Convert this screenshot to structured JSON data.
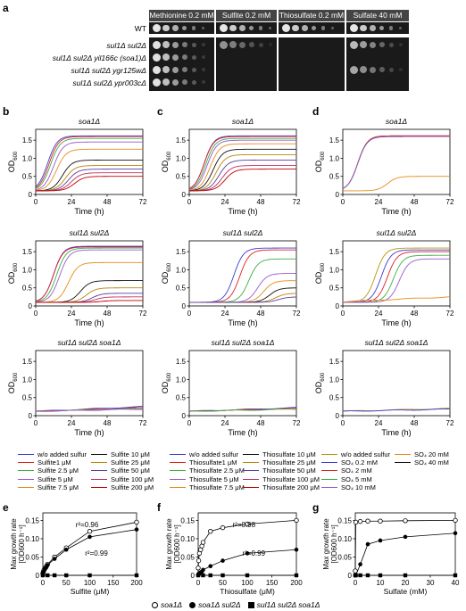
{
  "panel_labels": {
    "a": "a",
    "b": "b",
    "c": "c",
    "d": "d",
    "e": "e",
    "f": "f",
    "g": "g"
  },
  "panel_a": {
    "conditions": [
      "Methionine 0.2 mM",
      "Sulfite 0.2 mM",
      "Thiosulfate 0.2 mM",
      "Sulfate 40 mM"
    ],
    "strains_top": [
      "WT"
    ],
    "strains": [
      "sul1Δ sul2Δ",
      "sul1Δ sul2Δ yil166c (soa1)Δ",
      "sul1Δ sul2Δ ygr125wΔ",
      "sul1Δ sul2Δ ypr003cΔ"
    ]
  },
  "growth_axes": {
    "ylabel": "OD",
    "ysub": "600",
    "xlabel": "Time (h)",
    "xticks": [
      "0",
      "24",
      "48",
      "72"
    ],
    "yticks": [
      "0",
      "0.5",
      "1.0",
      "1.5"
    ]
  },
  "panel_b": {
    "titles": [
      "soa1Δ",
      "sul1Δ  sul2Δ",
      "sul1Δ  sul2Δ  soa1Δ"
    ],
    "legend": [
      {
        "label": "w/o added sulfur",
        "color": "#3b3bd6"
      },
      {
        "label": "Sulfite1 μM",
        "color": "#e02020"
      },
      {
        "label": "Sulfite 2.5 μM",
        "color": "#3cb043"
      },
      {
        "label": "Sulfite 5 μM",
        "color": "#9b59d0"
      },
      {
        "label": "Sulfite 7.5 μM",
        "color": "#e88a1a"
      },
      {
        "label": "Sulfite 10 μM",
        "color": "#111111"
      },
      {
        "label": "Sulfite 25 μM",
        "color": "#b8860b"
      },
      {
        "label": "Sulfite 50 μM",
        "color": "#5a3fa0"
      },
      {
        "label": "Sulfite 100 μM",
        "color": "#c03060"
      },
      {
        "label": "Sulfite 200 μM",
        "color": "#c00000"
      }
    ]
  },
  "panel_c": {
    "titles": [
      "soa1Δ",
      "sul1Δ  sul2Δ",
      "sul1Δ  sul2Δ  soa1Δ"
    ],
    "legend": [
      {
        "label": "w/o added sulfur",
        "color": "#3b3bd6"
      },
      {
        "label": "Thiosulfate1 μM",
        "color": "#e02020"
      },
      {
        "label": "Thiosulfate 2.5 μM",
        "color": "#3cb043"
      },
      {
        "label": "Thiosulfate 5 μM",
        "color": "#9b59d0"
      },
      {
        "label": "Thiosulfate 7.5 μM",
        "color": "#e88a1a"
      },
      {
        "label": "Thiosulfate 10 μM",
        "color": "#111111"
      },
      {
        "label": "Thiosulfate 25 μM",
        "color": "#b8860b"
      },
      {
        "label": "Thiosulfate 50 μM",
        "color": "#5a3fa0"
      },
      {
        "label": "Thiosulfate 100 μM",
        "color": "#c03060"
      },
      {
        "label": "Thiosulfate 200 μM",
        "color": "#c00000"
      }
    ]
  },
  "panel_d": {
    "titles": [
      "soa1Δ",
      "sul1Δ  sul2Δ",
      "sul1Δ  sul2Δ  soa1Δ"
    ],
    "legend": [
      {
        "label": "w/o added sulfur",
        "color": "#b8960b"
      },
      {
        "label": "SO₄ 0.2 mM",
        "color": "#3b3bd6"
      },
      {
        "label": "SO₄ 2 mM",
        "color": "#e02020"
      },
      {
        "label": "SO₄ 5 mM",
        "color": "#3cb043"
      },
      {
        "label": "SO₄ 10 mM",
        "color": "#9b59d0"
      },
      {
        "label": "SO₄ 20 mM",
        "color": "#e88a1a"
      },
      {
        "label": "SO₄ 40 mM",
        "color": "#111111"
      }
    ]
  },
  "rate_axes": {
    "ylabel": "Max growth rate",
    "yunit": "[OD600 h⁻¹]",
    "yticks": [
      "0",
      "0.05",
      "0.10",
      "0.15"
    ]
  },
  "bottom_legend": [
    "soa1Δ",
    "soa1Δ sul2Δ",
    "sul1Δ sul2Δ soa1Δ"
  ],
  "chart_data": [
    {
      "type": "line",
      "panel": "b-top",
      "title": "soa1Δ",
      "xlabel": "Time (h)",
      "ylabel": "OD600",
      "xlim": [
        0,
        72
      ],
      "ylim": [
        0,
        1.8
      ],
      "series": [
        {
          "plateau": 1.62,
          "rise": 8
        },
        {
          "plateau": 1.6,
          "rise": 9
        },
        {
          "plateau": 1.55,
          "rise": 10
        },
        {
          "plateau": 1.45,
          "rise": 12
        },
        {
          "plateau": 1.25,
          "rise": 14
        },
        {
          "plateau": 0.95,
          "rise": 18
        },
        {
          "plateau": 0.8,
          "rise": 20
        },
        {
          "plateau": 0.7,
          "rise": 22
        },
        {
          "plateau": 0.6,
          "rise": 24
        },
        {
          "plateau": 0.5,
          "rise": 26
        }
      ]
    },
    {
      "type": "line",
      "panel": "b-mid",
      "title": "sul1Δ  sul2Δ",
      "xlabel": "Time (h)",
      "ylabel": "OD600",
      "xlim": [
        0,
        72
      ],
      "ylim": [
        0,
        1.8
      ],
      "series": [
        {
          "plateau": 1.65,
          "rise": 12
        },
        {
          "plateau": 1.63,
          "rise": 12
        },
        {
          "plateau": 1.6,
          "rise": 14
        },
        {
          "plateau": 1.55,
          "rise": 16
        },
        {
          "plateau": 1.2,
          "rise": 22
        },
        {
          "plateau": 0.7,
          "rise": 30
        },
        {
          "plateau": 0.5,
          "rise": 34
        },
        {
          "plateau": 0.35,
          "rise": 38
        },
        {
          "plateau": 0.25,
          "rise": 40
        },
        {
          "plateau": 0.15,
          "rise": 44
        }
      ]
    },
    {
      "type": "line",
      "panel": "b-bot",
      "title": "sul1Δ  sul2Δ  soa1Δ",
      "xlabel": "Time (h)",
      "ylabel": "OD600",
      "xlim": [
        0,
        72
      ],
      "ylim": [
        0,
        1.8
      ],
      "series": [
        {
          "plateau": 0.25
        },
        {
          "plateau": 0.22
        },
        {
          "plateau": 0.2
        },
        {
          "plateau": 0.18
        }
      ]
    },
    {
      "type": "line",
      "panel": "c-top",
      "title": "soa1Δ",
      "xlabel": "Time (h)",
      "ylabel": "OD600",
      "xlim": [
        0,
        72
      ],
      "ylim": [
        0,
        1.8
      ],
      "series": [
        {
          "plateau": 1.62,
          "rise": 10
        },
        {
          "plateau": 1.6,
          "rise": 10
        },
        {
          "plateau": 1.55,
          "rise": 11
        },
        {
          "plateau": 1.5,
          "rise": 12
        },
        {
          "plateau": 1.4,
          "rise": 14
        },
        {
          "plateau": 1.25,
          "rise": 16
        },
        {
          "plateau": 1.1,
          "rise": 18
        },
        {
          "plateau": 0.95,
          "rise": 20
        },
        {
          "plateau": 0.8,
          "rise": 22
        },
        {
          "plateau": 0.7,
          "rise": 24
        }
      ]
    },
    {
      "type": "line",
      "panel": "c-mid",
      "title": "sul1Δ  sul2Δ",
      "xlabel": "Time (h)",
      "ylabel": "OD600",
      "xlim": [
        0,
        72
      ],
      "ylim": [
        0,
        1.8
      ],
      "series": [
        {
          "plateau": 1.6,
          "rise": 30
        },
        {
          "plateau": 1.55,
          "rise": 34
        },
        {
          "plateau": 1.3,
          "rise": 40
        },
        {
          "plateau": 0.9,
          "rise": 46
        },
        {
          "plateau": 0.7,
          "rise": 50
        },
        {
          "plateau": 0.5,
          "rise": 54
        },
        {
          "plateau": 0.35,
          "rise": 58
        },
        {
          "plateau": 0.25,
          "rise": 60
        }
      ]
    },
    {
      "type": "line",
      "panel": "c-bot",
      "title": "sul1Δ  sul2Δ  soa1Δ",
      "xlabel": "Time (h)",
      "ylabel": "OD600",
      "xlim": [
        0,
        72
      ],
      "ylim": [
        0,
        1.8
      ],
      "series": [
        {
          "plateau": 0.22
        },
        {
          "plateau": 0.2
        },
        {
          "plateau": 0.18
        }
      ]
    },
    {
      "type": "line",
      "panel": "d-top",
      "title": "soa1Δ",
      "xlabel": "Time (h)",
      "ylabel": "OD600",
      "xlim": [
        0,
        72
      ],
      "ylim": [
        0,
        1.8
      ],
      "series": [
        {
          "plateau": 1.62,
          "rise": 10
        },
        {
          "plateau": 1.62,
          "rise": 10
        },
        {
          "plateau": 1.62,
          "rise": 10
        },
        {
          "plateau": 1.6,
          "rise": 10
        },
        {
          "plateau": 1.6,
          "rise": 10
        },
        {
          "plateau": 0.5,
          "rise": 30
        }
      ]
    },
    {
      "type": "line",
      "panel": "d-mid",
      "title": "sul1Δ  sul2Δ",
      "xlabel": "Time (h)",
      "ylabel": "OD600",
      "xlim": [
        0,
        72
      ],
      "ylim": [
        0,
        1.8
      ],
      "series": [
        {
          "plateau": 1.6,
          "rise": 22
        },
        {
          "plateau": 1.55,
          "rise": 26
        },
        {
          "plateau": 1.5,
          "rise": 30
        },
        {
          "plateau": 1.4,
          "rise": 34
        },
        {
          "plateau": 1.3,
          "rise": 38
        },
        {
          "plateau": 0.25
        }
      ]
    },
    {
      "type": "line",
      "panel": "d-bot",
      "title": "sul1Δ  sul2Δ  soa1Δ",
      "xlabel": "Time (h)",
      "ylabel": "OD600",
      "xlim": [
        0,
        72
      ],
      "ylim": [
        0,
        1.8
      ],
      "series": [
        {
          "plateau": 0.2
        },
        {
          "plateau": 0.18
        }
      ]
    },
    {
      "type": "scatter",
      "panel": "e",
      "xlabel": "Sulfite (μM)",
      "ylabel": "Max growth rate [OD600 h⁻¹]",
      "xlim": [
        0,
        200
      ],
      "ylim": [
        0,
        0.15
      ],
      "annotations": [
        "r²=0.96",
        "r²=0.99"
      ],
      "series": [
        {
          "name": "soa1Δ",
          "x": [
            0,
            1,
            2.5,
            5,
            7.5,
            10,
            25,
            50,
            100,
            200
          ],
          "y": [
            0.005,
            0.01,
            0.015,
            0.02,
            0.025,
            0.03,
            0.05,
            0.075,
            0.12,
            0.145
          ]
        },
        {
          "name": "soa1Δ sul2Δ",
          "x": [
            0,
            1,
            2.5,
            5,
            7.5,
            10,
            25,
            50,
            100,
            200
          ],
          "y": [
            0.003,
            0.008,
            0.012,
            0.018,
            0.022,
            0.028,
            0.045,
            0.07,
            0.105,
            0.125
          ]
        },
        {
          "name": "sul1Δ sul2Δ soa1Δ",
          "x": [
            0,
            10,
            25,
            50,
            100,
            200
          ],
          "y": [
            0,
            0,
            0,
            0,
            0,
            0
          ]
        }
      ]
    },
    {
      "type": "scatter",
      "panel": "f",
      "xlabel": "Thiosulfate (μM)",
      "ylabel": "Max growth rate [OD600 h⁻¹]",
      "xlim": [
        0,
        200
      ],
      "ylim": [
        0,
        0.15
      ],
      "annotations": [
        "r²=0.98",
        "r²=0.99"
      ],
      "series": [
        {
          "name": "soa1Δ",
          "x": [
            0,
            1,
            2.5,
            5,
            7.5,
            10,
            25,
            50,
            100,
            200
          ],
          "y": [
            0.02,
            0.04,
            0.06,
            0.07,
            0.08,
            0.09,
            0.12,
            0.13,
            0.14,
            0.15
          ]
        },
        {
          "name": "soa1Δ sul2Δ",
          "x": [
            0,
            1,
            2.5,
            5,
            7.5,
            10,
            25,
            50,
            100,
            200
          ],
          "y": [
            0.002,
            0.004,
            0.006,
            0.008,
            0.01,
            0.015,
            0.025,
            0.04,
            0.06,
            0.07
          ]
        },
        {
          "name": "sul1Δ sul2Δ soa1Δ",
          "x": [
            0,
            10,
            25,
            50,
            100,
            200
          ],
          "y": [
            0,
            0,
            0,
            0,
            0,
            0
          ]
        }
      ]
    },
    {
      "type": "scatter",
      "panel": "g",
      "xlabel": "Sulfate (mM)",
      "ylabel": "Max growth rate [OD600 h⁻¹]",
      "xlim": [
        0,
        40
      ],
      "ylim": [
        0,
        0.15
      ],
      "series": [
        {
          "name": "soa1Δ",
          "x": [
            0,
            0.2,
            2,
            5,
            10,
            20,
            40
          ],
          "y": [
            0.012,
            0.145,
            0.147,
            0.148,
            0.148,
            0.149,
            0.15
          ]
        },
        {
          "name": "soa1Δ sul2Δ",
          "x": [
            0,
            0.2,
            2,
            5,
            10,
            20,
            40
          ],
          "y": [
            0,
            0.0,
            0.03,
            0.085,
            0.095,
            0.105,
            0.115
          ]
        },
        {
          "name": "sul1Δ sul2Δ soa1Δ",
          "x": [
            0,
            0.2,
            2,
            5,
            10,
            20,
            40
          ],
          "y": [
            0,
            0,
            0,
            0,
            0,
            0,
            0
          ]
        }
      ]
    }
  ]
}
